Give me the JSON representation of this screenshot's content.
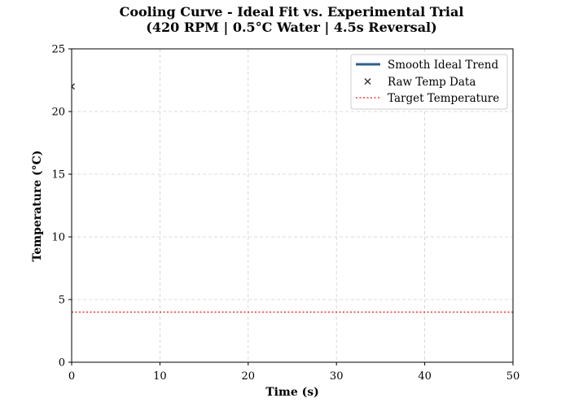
{
  "chart_data": {
    "type": "line",
    "title": "Cooling Curve - Ideal Fit vs. Experimental Trial",
    "subtitle": "(420 RPM | 0.5°C Water | 4.5s Reversal)",
    "xlabel": "Time (s)",
    "ylabel": "Temperature (°C)",
    "xlim": [
      0,
      50
    ],
    "ylim": [
      0,
      25
    ],
    "x_ticks": [
      0,
      10,
      20,
      30,
      40,
      50
    ],
    "y_ticks": [
      0,
      5,
      10,
      15,
      20,
      25
    ],
    "grid": true,
    "legend_position": "top-right",
    "series": [
      {
        "name": "Smooth Ideal Trend",
        "kind": "line",
        "color": "#2f5f8a",
        "x": [],
        "y": []
      },
      {
        "name": "Raw Temp Data",
        "kind": "scatter",
        "marker": "x",
        "color": "#333333",
        "x": [
          0
        ],
        "y": [
          22
        ]
      },
      {
        "name": "Target Temperature",
        "kind": "hline",
        "style": "dotted",
        "color": "#e8403a",
        "y": 4
      }
    ]
  }
}
